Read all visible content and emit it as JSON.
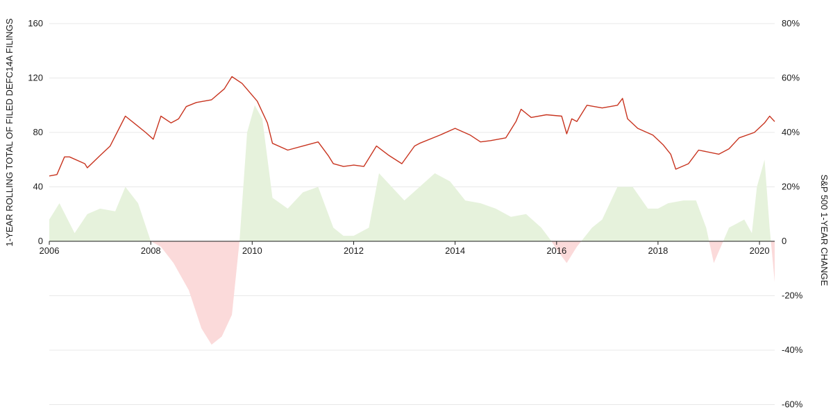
{
  "chart_data": {
    "type": "line",
    "xlabel": "",
    "x_range": [
      2006,
      2020.3
    ],
    "x_ticks": [
      "2006",
      "2008",
      "2010",
      "2012",
      "2014",
      "2016",
      "2018",
      "2020"
    ],
    "left_axis": {
      "label": "1-YEAR ROLLING TOTAL OF FILED DEFC14A FILINGS",
      "range": [
        0,
        160
      ],
      "ticks": [
        "0",
        "40",
        "80",
        "120",
        "160"
      ]
    },
    "right_axis": {
      "label": "S&P 500 1-YEAR CHANGE",
      "range": [
        -60,
        80
      ],
      "ticks": [
        "80%",
        "60%",
        "40%",
        "20%",
        "0",
        "-20%",
        "-40%",
        "-60%"
      ]
    },
    "grid": true,
    "colors": {
      "filings_line": "#c8341f",
      "sp500_positive": "#e6f2dc",
      "sp500_negative": "#fbdada",
      "gridline": "#e8e8e8",
      "baseline": "#1a1a1a"
    },
    "series": [
      {
        "axis": "left",
        "style": "line",
        "x": [
          2006.0,
          2006.15,
          2006.3,
          2006.4,
          2006.7,
          2006.75,
          2007.0,
          2007.2,
          2007.5,
          2007.7,
          2007.9,
          2008.05,
          2008.2,
          2008.4,
          2008.55,
          2008.7,
          2008.9,
          2009.2,
          2009.45,
          2009.6,
          2009.8,
          2010.1,
          2010.3,
          2010.4,
          2010.7,
          2011.0,
          2011.3,
          2011.5,
          2011.6,
          2011.8,
          2012.0,
          2012.2,
          2012.45,
          2012.7,
          2012.95,
          2013.2,
          2013.3,
          2013.7,
          2014.0,
          2014.3,
          2014.5,
          2014.7,
          2015.0,
          2015.2,
          2015.3,
          2015.5,
          2015.8,
          2016.1,
          2016.2,
          2016.3,
          2016.4,
          2016.6,
          2016.9,
          2017.2,
          2017.3,
          2017.4,
          2017.6,
          2017.9,
          2018.1,
          2018.25,
          2018.35,
          2018.6,
          2018.8,
          2019.2,
          2019.4,
          2019.6,
          2019.9,
          2020.1,
          2020.2,
          2020.3
        ],
        "values": [
          48,
          49,
          62,
          62,
          57,
          54,
          63,
          70,
          92,
          86,
          80,
          75,
          92,
          87,
          90,
          99,
          102,
          104,
          112,
          121,
          116,
          103,
          87,
          72,
          67,
          70,
          73,
          63,
          57,
          55,
          56,
          55,
          70,
          63,
          57,
          70,
          72,
          78,
          83,
          78,
          73,
          74,
          76,
          88,
          97,
          91,
          93,
          92,
          79,
          90,
          88,
          100,
          98,
          100,
          105,
          90,
          83,
          78,
          71,
          64,
          53,
          57,
          67,
          64,
          68,
          76,
          80,
          87,
          92,
          88
        ]
      },
      {
        "name": "S&P 500 1-YEAR CHANGE",
        "axis": "right",
        "style": "area",
        "x": [
          2006.0,
          2006.2,
          2006.5,
          2006.75,
          2007.0,
          2007.3,
          2007.5,
          2007.75,
          2008.0,
          2008.2,
          2008.45,
          2008.75,
          2009.0,
          2009.2,
          2009.4,
          2009.6,
          2009.75,
          2009.9,
          2010.05,
          2010.2,
          2010.4,
          2010.7,
          2011.0,
          2011.3,
          2011.6,
          2011.8,
          2012.0,
          2012.3,
          2012.5,
          2012.75,
          2013.0,
          2013.3,
          2013.6,
          2013.9,
          2014.2,
          2014.5,
          2014.8,
          2015.1,
          2015.4,
          2015.7,
          2015.9,
          2016.0,
          2016.2,
          2016.4,
          2016.7,
          2016.9,
          2017.2,
          2017.5,
          2017.8,
          2018.0,
          2018.2,
          2018.5,
          2018.75,
          2018.95,
          2019.1,
          2019.4,
          2019.7,
          2019.85,
          2019.95,
          2020.1,
          2020.2,
          2020.3
        ],
        "values": [
          8,
          14,
          3,
          10,
          12,
          11,
          20,
          14,
          0,
          -2,
          -8,
          -18,
          -32,
          -38,
          -35,
          -27,
          0,
          40,
          50,
          45,
          16,
          12,
          18,
          20,
          5,
          2,
          2,
          5,
          25,
          20,
          15,
          20,
          25,
          22,
          15,
          14,
          12,
          9,
          10,
          5,
          0,
          -3,
          -8,
          -2,
          5,
          8,
          20,
          20,
          12,
          12,
          14,
          15,
          15,
          5,
          -8,
          5,
          8,
          3,
          20,
          30,
          5,
          -15
        ]
      }
    ]
  }
}
